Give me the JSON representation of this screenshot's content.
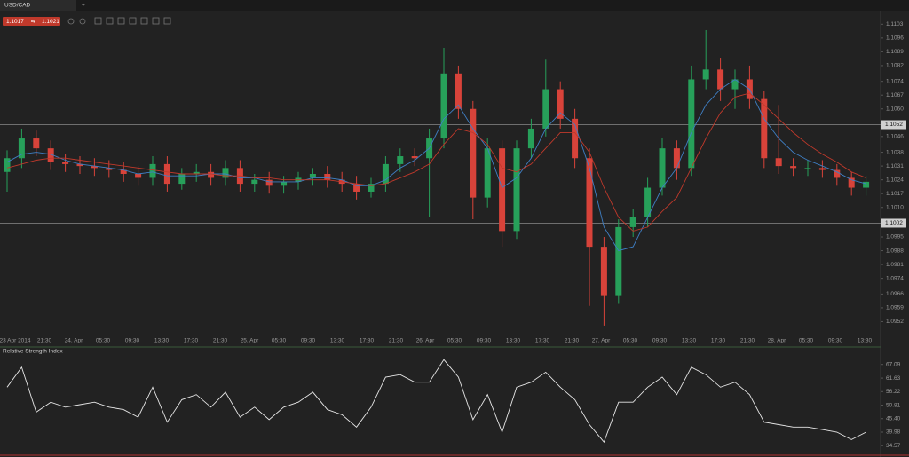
{
  "header": {
    "symbol": "USD/CAD",
    "new_tab": "+",
    "bid": "1.1017",
    "ask": "1.1021"
  },
  "chart_data": [
    {
      "type": "candlestick",
      "up_color": "#27a05a",
      "down_color": "#d8433a",
      "open": [
        1.1028,
        1.1035,
        1.1045,
        1.104,
        1.1033,
        1.1032,
        1.1031,
        1.103,
        1.1029,
        1.1027,
        1.1025,
        1.1032,
        1.1022,
        1.1027,
        1.1028,
        1.1025,
        1.103,
        1.1022,
        1.1024,
        1.1021,
        1.1023,
        1.1025,
        1.1027,
        1.1024,
        1.1022,
        1.1018,
        1.1022,
        1.1032,
        1.1036,
        1.1035,
        1.1045,
        1.1078,
        1.106,
        1.1015,
        1.104,
        1.0998,
        1.104,
        1.105,
        1.107,
        1.1055,
        1.1035,
        1.099,
        1.0965,
        1.1,
        1.1005,
        1.102,
        1.104,
        1.103,
        1.1075,
        1.108,
        1.107,
        1.1075,
        1.1065,
        1.1035,
        1.1031,
        1.103,
        1.103,
        1.1029,
        1.1025,
        1.102
      ],
      "high": [
        1.1039,
        1.105,
        1.1049,
        1.1044,
        1.1037,
        1.1036,
        1.1035,
        1.1034,
        1.1033,
        1.1031,
        1.1036,
        1.1036,
        1.103,
        1.1032,
        1.1032,
        1.1034,
        1.1034,
        1.1027,
        1.1028,
        1.1026,
        1.1028,
        1.103,
        1.1031,
        1.1028,
        1.1026,
        1.1025,
        1.1036,
        1.104,
        1.104,
        1.105,
        1.1091,
        1.1082,
        1.1064,
        1.1045,
        1.1044,
        1.1044,
        1.1055,
        1.1085,
        1.1074,
        1.106,
        1.104,
        1.0995,
        1.1004,
        1.1009,
        1.1025,
        1.1045,
        1.1044,
        1.1082,
        1.11,
        1.1086,
        1.108,
        1.1082,
        1.1069,
        1.1062,
        1.1035,
        1.1034,
        1.1034,
        1.1032,
        1.1028,
        1.1026
      ],
      "low": [
        1.1018,
        1.103,
        1.1036,
        1.1029,
        1.1028,
        1.1027,
        1.1026,
        1.1025,
        1.1023,
        1.1021,
        1.1021,
        1.1018,
        1.1019,
        1.1023,
        1.1021,
        1.1021,
        1.1018,
        1.1018,
        1.1017,
        1.1017,
        1.1019,
        1.1021,
        1.102,
        1.1018,
        1.1014,
        1.1015,
        1.1018,
        1.1028,
        1.1031,
        1.1005,
        1.104,
        1.1055,
        1.1004,
        1.101,
        1.099,
        1.0994,
        1.1035,
        1.1046,
        1.105,
        1.103,
        1.096,
        1.095,
        1.0961,
        1.0995,
        1.1,
        1.1016,
        1.1024,
        1.1026,
        1.107,
        1.1064,
        1.106,
        1.106,
        1.103,
        1.1027,
        1.1026,
        1.1026,
        1.1025,
        1.1021,
        1.1016,
        1.1016
      ],
      "close": [
        1.1035,
        1.1045,
        1.104,
        1.1033,
        1.1032,
        1.1031,
        1.103,
        1.1029,
        1.1027,
        1.1025,
        1.1032,
        1.1022,
        1.1027,
        1.1028,
        1.1025,
        1.103,
        1.1022,
        1.1024,
        1.1021,
        1.1023,
        1.1025,
        1.1027,
        1.1024,
        1.1022,
        1.1018,
        1.1022,
        1.1032,
        1.1036,
        1.1035,
        1.1045,
        1.1078,
        1.106,
        1.1015,
        1.104,
        1.0998,
        1.104,
        1.105,
        1.107,
        1.1055,
        1.1035,
        1.099,
        1.0965,
        1.1,
        1.1005,
        1.102,
        1.104,
        1.103,
        1.1075,
        1.108,
        1.107,
        1.1075,
        1.1065,
        1.1035,
        1.1031,
        1.103,
        1.103,
        1.1029,
        1.1025,
        1.102,
        1.1023
      ],
      "averages": [
        {
          "color": "#3f7fc4",
          "values": [
            1.1033,
            1.1037,
            1.1038,
            1.1037,
            1.1034,
            1.1032,
            1.1031,
            1.103,
            1.1029,
            1.1027,
            1.1028,
            1.1026,
            1.1026,
            1.1026,
            1.1027,
            1.1027,
            1.1025,
            1.1025,
            1.1023,
            1.1023,
            1.1023,
            1.1025,
            1.1025,
            1.1024,
            1.1021,
            1.1021,
            1.1024,
            1.103,
            1.1034,
            1.104,
            1.1055,
            1.1062,
            1.105,
            1.104,
            1.102,
            1.1025,
            1.1035,
            1.105,
            1.1058,
            1.1052,
            1.103,
            1.1,
            1.0988,
            1.099,
            1.1005,
            1.102,
            1.103,
            1.1048,
            1.1062,
            1.107,
            1.1075,
            1.107,
            1.1055,
            1.1045,
            1.1038,
            1.1034,
            1.1031,
            1.1028,
            1.1024,
            1.1022
          ]
        },
        {
          "color": "#c0392b",
          "values": [
            1.103,
            1.1032,
            1.1034,
            1.1035,
            1.1035,
            1.1034,
            1.1033,
            1.1032,
            1.1031,
            1.103,
            1.1029,
            1.1028,
            1.1027,
            1.1027,
            1.1027,
            1.1026,
            1.1026,
            1.1025,
            1.1025,
            1.1024,
            1.1024,
            1.1024,
            1.1024,
            1.1023,
            1.1022,
            1.1021,
            1.1022,
            1.1025,
            1.1028,
            1.1032,
            1.1042,
            1.105,
            1.1048,
            1.1042,
            1.103,
            1.1028,
            1.1032,
            1.104,
            1.1048,
            1.1048,
            1.1038,
            1.102,
            1.1005,
            1.0998,
            1.1,
            1.1008,
            1.1015,
            1.103,
            1.1045,
            1.1058,
            1.1066,
            1.1068,
            1.1062,
            1.1055,
            1.1048,
            1.1042,
            1.1037,
            1.1033,
            1.1028,
            1.1025
          ]
        }
      ],
      "levels": [
        1.1052,
        1.1002
      ],
      "ylim": [
        1.0945,
        1.1109
      ],
      "yticks": [
        1.1103,
        1.1096,
        1.1089,
        1.1082,
        1.1074,
        1.1067,
        {
          "value": 1.106,
          "label": "1.1060"
        },
        1.1046,
        1.1038,
        1.1031,
        1.1024,
        1.1017,
        {
          "value": 1.101,
          "label": "1.1010"
        },
        1.0995,
        1.0988,
        1.0981,
        1.0974,
        1.0966,
        1.0959,
        1.0952
      ],
      "xlabels": [
        "23 Apr 2014",
        "21:30",
        "24. Apr",
        "05:30",
        "09:30",
        "13:30",
        "17:30",
        "21:30",
        "25. Apr",
        "05:30",
        "09:30",
        "13:30",
        "17:30",
        "21:30",
        "26. Apr",
        "05:30",
        "09:30",
        "13:30",
        "17:30",
        "21:30",
        "27. Apr",
        "05:30",
        "09:30",
        "13:30",
        "17:30",
        "21:30",
        "28. Apr",
        "05:30",
        "09:30",
        "13:30"
      ]
    },
    {
      "type": "line",
      "title": "Relative Strength Index",
      "color": "#e6e6e6",
      "values": [
        58,
        66,
        48,
        52,
        50,
        51,
        52,
        50,
        49,
        46,
        58,
        44,
        53,
        55,
        50,
        56,
        46,
        50,
        45,
        50,
        52,
        56,
        49,
        47,
        42,
        50,
        62,
        63,
        60,
        60,
        69,
        62,
        45,
        55,
        40,
        58,
        60,
        64,
        58,
        53,
        43,
        36,
        52,
        52,
        58,
        62,
        55,
        66,
        63,
        58,
        60,
        55,
        44,
        43,
        42,
        42,
        41,
        40,
        37,
        40
      ],
      "ylim": [
        31.1,
        70.9
      ],
      "yticks": [
        67.09,
        61.63,
        56.22,
        50.81,
        {
          "value": 45.4,
          "label": "45.40"
        },
        39.98,
        34.57
      ]
    }
  ]
}
